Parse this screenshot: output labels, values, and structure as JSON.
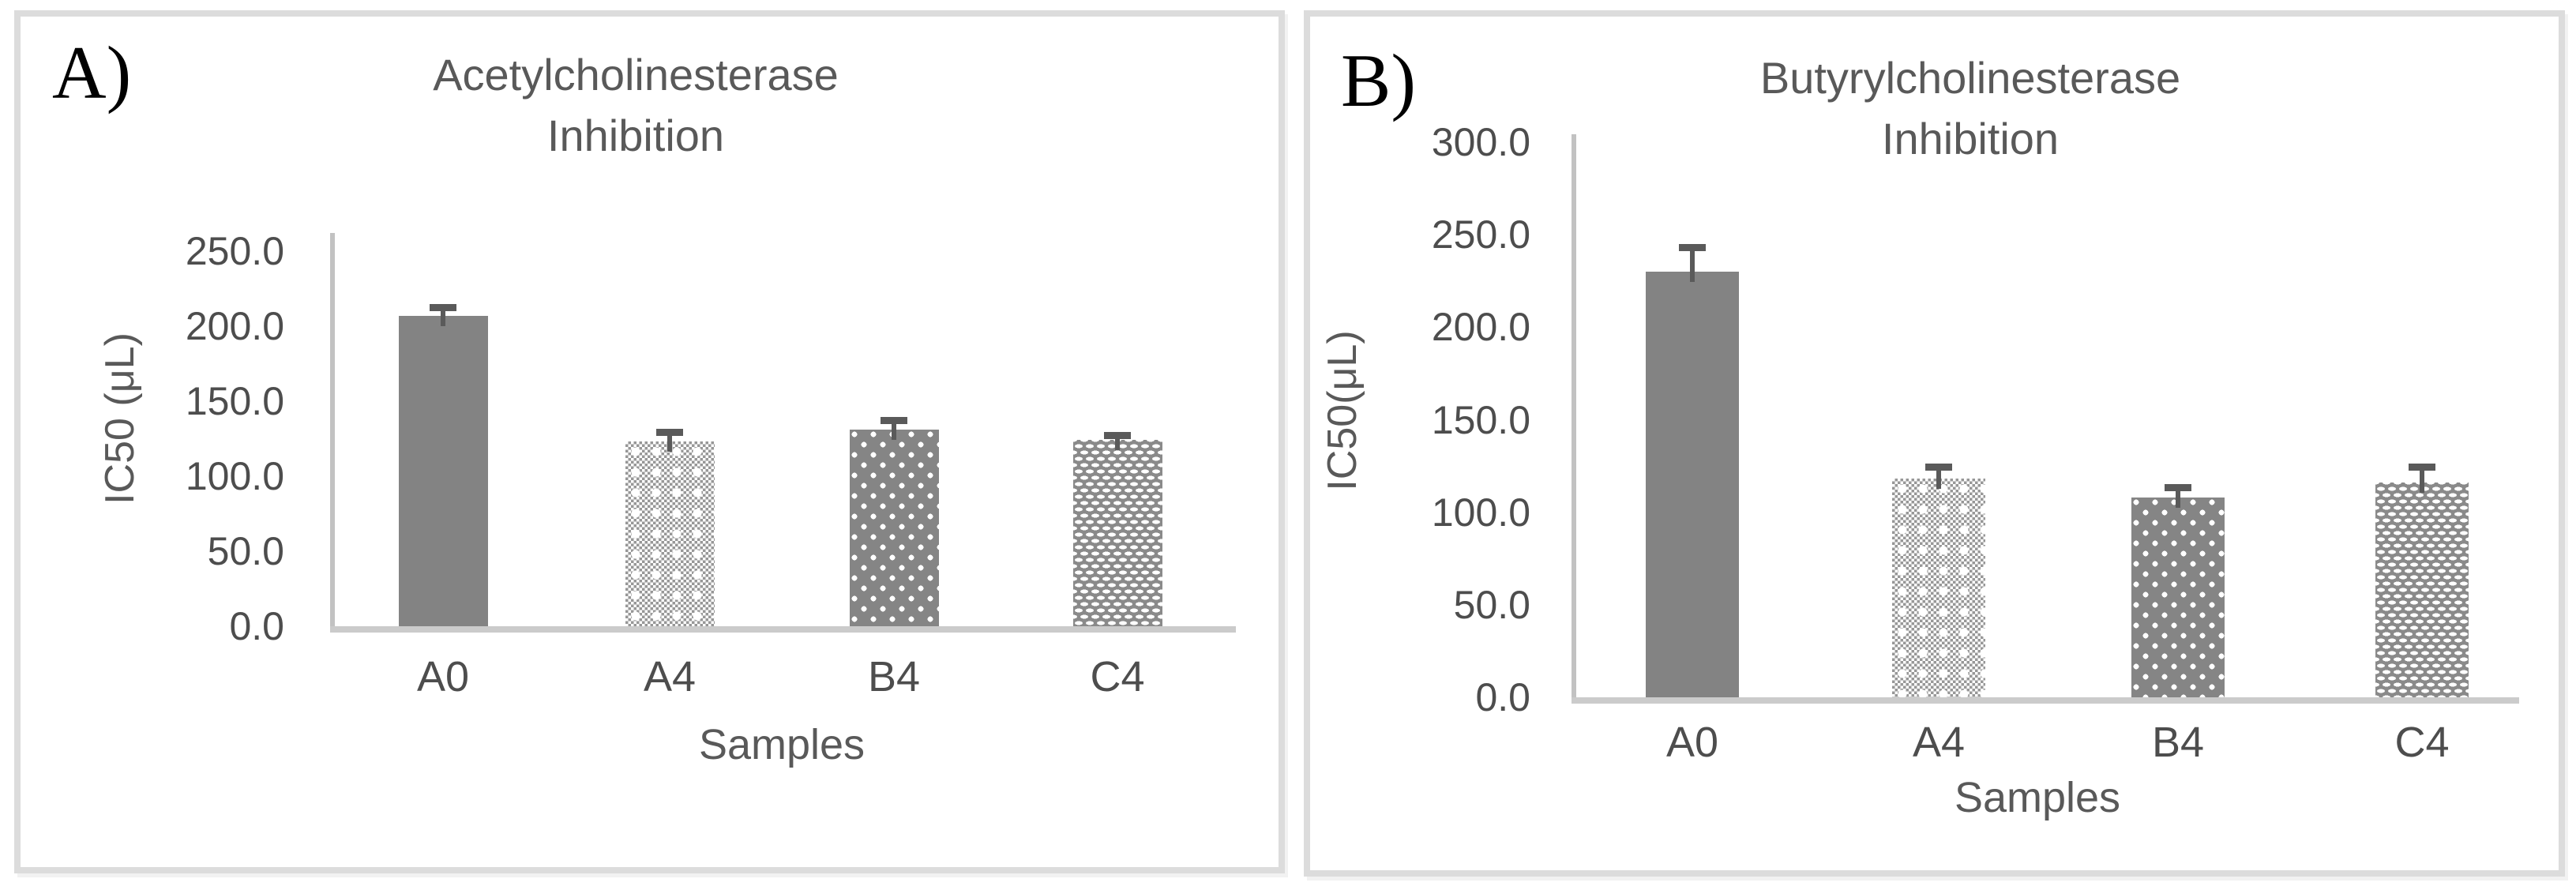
{
  "chart_data": [
    {
      "type": "bar",
      "panel_label": "A)",
      "title_line1": "Acetylcholinesterase",
      "title_line2": "Inhibition",
      "ylabel": "IC50 (μL)",
      "xlabel": "Samples",
      "categories": [
        "A0",
        "A4",
        "B4",
        "C4"
      ],
      "values": [
        207,
        123,
        131,
        124
      ],
      "errors_plus": [
        5,
        6,
        6,
        3
      ],
      "ylim": [
        0,
        250
      ],
      "ytick_step": 50,
      "ytick_decimals": 1,
      "ytick_labels": [
        "0.0",
        "50.0",
        "100.0",
        "150.0",
        "200.0",
        "250.0"
      ],
      "bar_patterns": [
        "solid",
        "checker",
        "dots",
        "bricks"
      ],
      "bar_color": "#838383",
      "error_color": "#5a5a5a",
      "axis_color": "#c2c2c2",
      "text_color": "#595959",
      "grid": false,
      "legend": null
    },
    {
      "type": "bar",
      "panel_label": "B)",
      "title_line1": "Butyrylcholinesterase",
      "title_line2": "Inhibition",
      "ylabel": "IC50(μL)",
      "xlabel": "Samples",
      "categories": [
        "A0",
        "A4",
        "B4",
        "C4"
      ],
      "values": [
        230,
        118,
        108,
        116
      ],
      "errors_plus": [
        13,
        6,
        5,
        8
      ],
      "ylim": [
        0,
        300
      ],
      "ytick_step": 50,
      "ytick_decimals": 1,
      "ytick_labels": [
        "0.0",
        "50.0",
        "100.0",
        "150.0",
        "200.0",
        "250.0",
        "300.0"
      ],
      "bar_patterns": [
        "solid",
        "checker",
        "dots",
        "bricks"
      ],
      "bar_color": "#838383",
      "error_color": "#5a5a5a",
      "axis_color": "#c2c2c2",
      "text_color": "#595959",
      "grid": false,
      "legend": null
    }
  ]
}
